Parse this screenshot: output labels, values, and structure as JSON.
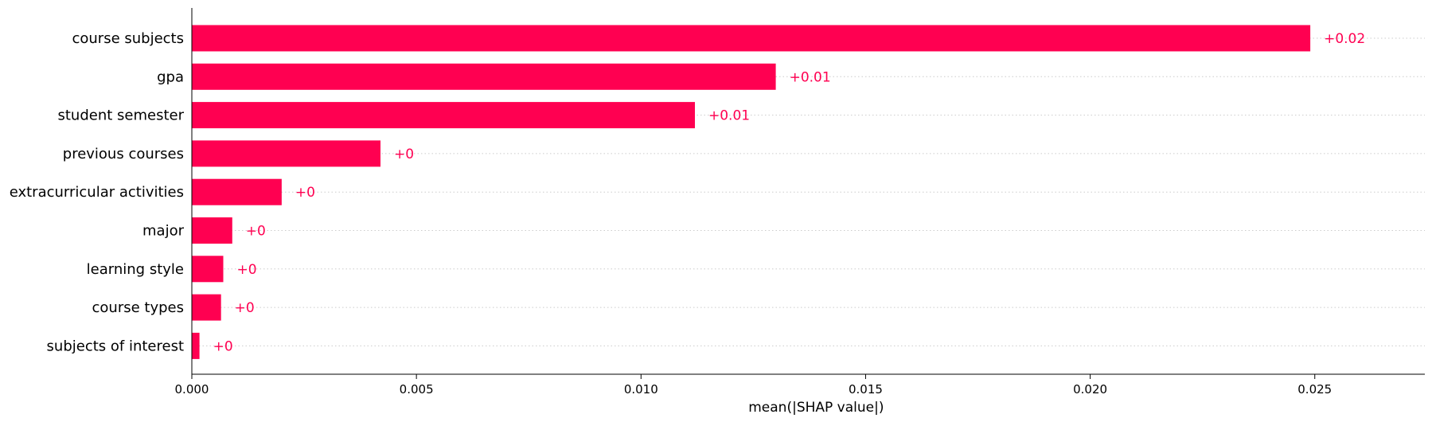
{
  "chart_data": {
    "type": "bar",
    "orientation": "horizontal",
    "categories": [
      "course subjects",
      "gpa",
      "student semester",
      "previous courses",
      "extracurricular activities",
      "major",
      "learning style",
      "course types",
      "subjects of interest"
    ],
    "values": [
      0.0249,
      0.013,
      0.0112,
      0.0042,
      0.002,
      0.0009,
      0.0007,
      0.00065,
      0.00017
    ],
    "value_labels": [
      "+0.02",
      "+0.01",
      "+0.01",
      "+0",
      "+0",
      "+0",
      "+0",
      "+0",
      "+0"
    ],
    "xlabel": "mean(|SHAP value|)",
    "xlim": [
      0,
      0.02745
    ],
    "xticks": [
      0,
      0.005,
      0.01,
      0.015,
      0.02,
      0.025
    ],
    "xtick_labels": [
      "0.000",
      "0.005",
      "0.010",
      "0.015",
      "0.020",
      "0.025"
    ],
    "bar_color": "#ff0051",
    "grid": "horizontal-dotted"
  }
}
